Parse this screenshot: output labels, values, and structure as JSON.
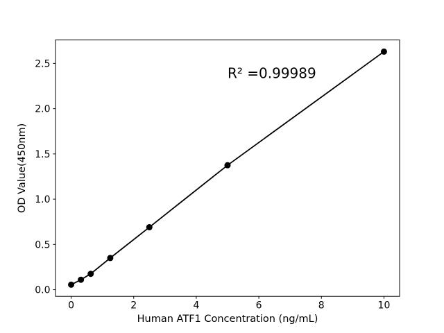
{
  "figure": {
    "background": "#ffffff"
  },
  "chart_data": {
    "type": "scatter",
    "title": "",
    "xlabel": "Human ATF1 Concentration (ng/mL)",
    "ylabel": "OD Value(450nm)",
    "points": [
      {
        "x": 0,
        "y": 0.055
      },
      {
        "x": 0.3125,
        "y": 0.11
      },
      {
        "x": 0.625,
        "y": 0.175
      },
      {
        "x": 1.25,
        "y": 0.35
      },
      {
        "x": 2.5,
        "y": 0.69
      },
      {
        "x": 5,
        "y": 1.375
      },
      {
        "x": 10,
        "y": 2.63
      }
    ],
    "line_through_points": true,
    "xlim": [
      -0.5,
      10.5
    ],
    "ylim": [
      -0.074,
      2.759
    ],
    "xticks": [
      {
        "value": 0,
        "label": "0"
      },
      {
        "value": 2,
        "label": "2"
      },
      {
        "value": 4,
        "label": "4"
      },
      {
        "value": 6,
        "label": "6"
      },
      {
        "value": 8,
        "label": "8"
      },
      {
        "value": 10,
        "label": "10"
      }
    ],
    "yticks": [
      {
        "value": 0.0,
        "label": "0.0"
      },
      {
        "value": 0.5,
        "label": "0.5"
      },
      {
        "value": 1.0,
        "label": "1.0"
      },
      {
        "value": 1.5,
        "label": "1.5"
      },
      {
        "value": 2.0,
        "label": "2.0"
      },
      {
        "value": 2.5,
        "label": "2.5"
      }
    ],
    "grid": false,
    "legend": null,
    "annotation": {
      "text": "R² =0.99989",
      "x": 5.0,
      "y": 2.34
    },
    "colors": {
      "line": "#000000",
      "marker": "#000000",
      "axis": "#000000",
      "background": "#ffffff"
    }
  }
}
